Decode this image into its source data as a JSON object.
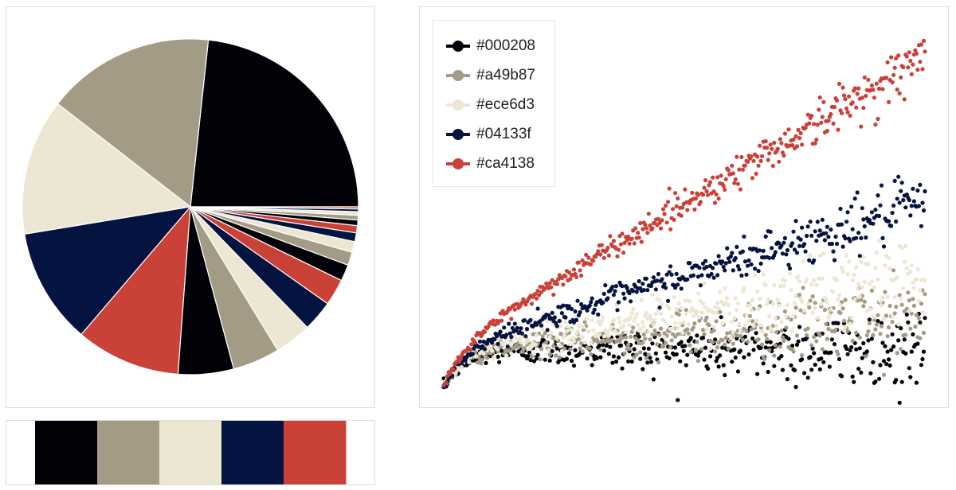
{
  "palette": [
    "#000208",
    "#a49b87",
    "#ece6d3",
    "#04133f",
    "#ca4138"
  ],
  "pie_chart": {
    "type": "pie",
    "title": "",
    "slices": [
      {
        "value": 23.6,
        "color": "#000208"
      },
      {
        "value": 16.4,
        "color": "#a49b87"
      },
      {
        "value": 13.3,
        "color": "#ece6d3"
      },
      {
        "value": 11.3,
        "color": "#04133f"
      },
      {
        "value": 10.2,
        "color": "#ca4138"
      },
      {
        "value": 5.4,
        "color": "#000208"
      },
      {
        "value": 4.6,
        "color": "#a49b87"
      },
      {
        "value": 3.6,
        "color": "#ece6d3"
      },
      {
        "value": 3.0,
        "color": "#04133f"
      },
      {
        "value": 2.6,
        "color": "#ca4138"
      },
      {
        "value": 1.6,
        "color": "#000208"
      },
      {
        "value": 1.3,
        "color": "#a49b87"
      },
      {
        "value": 1.05,
        "color": "#ece6d3"
      },
      {
        "value": 0.85,
        "color": "#04133f"
      },
      {
        "value": 0.7,
        "color": "#ca4138"
      },
      {
        "value": 0.55,
        "color": "#000208"
      },
      {
        "value": 0.45,
        "color": "#a49b87"
      },
      {
        "value": 0.35,
        "color": "#ece6d3"
      },
      {
        "value": 0.27,
        "color": "#04133f"
      },
      {
        "value": 0.2,
        "color": "#ca4138"
      }
    ]
  },
  "swatches": [
    "#000208",
    "#a49b87",
    "#ece6d3",
    "#04133f",
    "#ca4138"
  ],
  "chart_data": {
    "type": "scatter",
    "title": "",
    "xlabel": "",
    "ylabel": "",
    "grid": false,
    "legend": "top-left",
    "x_range": [
      0,
      100
    ],
    "y_range": [
      -0.5,
      4
    ],
    "series": [
      {
        "name": "#000208",
        "color": "#000208",
        "slope": 0.0,
        "noise": 0.2
      },
      {
        "name": "#a49b87",
        "color": "#a49b87",
        "slope": 0.4,
        "noise": 0.22
      },
      {
        "name": "#ece6d3",
        "color": "#ece6d3",
        "slope": 0.9,
        "noise": 0.25
      },
      {
        "name": "#04133f",
        "color": "#04133f",
        "slope": 1.8,
        "noise": 0.16
      },
      {
        "name": "#ca4138",
        "color": "#ca4138",
        "slope": 3.6,
        "noise": 0.14
      }
    ]
  }
}
